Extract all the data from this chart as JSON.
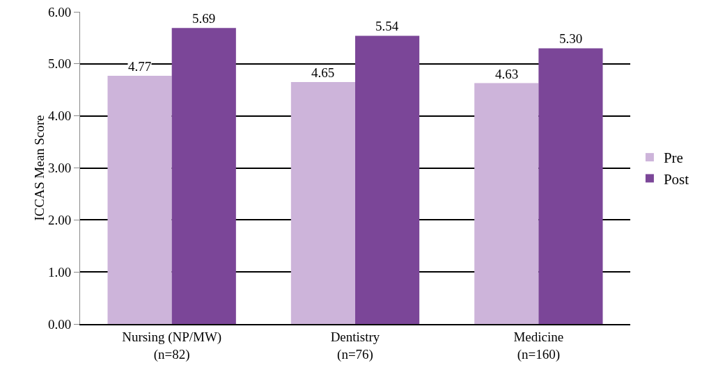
{
  "chart_data": {
    "type": "bar",
    "ylabel": "ICCAS Mean Score",
    "categories": [
      "Nursing (NP/MW)\n(n=82)",
      "Dentistry\n(n=76)",
      "Medicine\n(n=160)"
    ],
    "series": [
      {
        "name": "Pre",
        "color": "#cdb4da",
        "values": [
          4.77,
          4.65,
          4.63
        ],
        "value_labels": [
          "4.77",
          "4.65",
          "4.63"
        ]
      },
      {
        "name": "Post",
        "color": "#7b4698",
        "values": [
          5.69,
          5.54,
          5.3
        ],
        "value_labels": [
          "5.69",
          "5.54",
          "5.30"
        ]
      }
    ],
    "ylim": [
      0,
      6
    ],
    "yticks": [
      {
        "value": 0,
        "label": "0.00"
      },
      {
        "value": 1,
        "label": "1.00"
      },
      {
        "value": 2,
        "label": "2.00"
      },
      {
        "value": 3,
        "label": "3.00"
      },
      {
        "value": 4,
        "label": "4.00"
      },
      {
        "value": 5,
        "label": "5.00"
      },
      {
        "value": 6,
        "label": "6.00"
      }
    ],
    "grid": "y",
    "legend": "right"
  }
}
